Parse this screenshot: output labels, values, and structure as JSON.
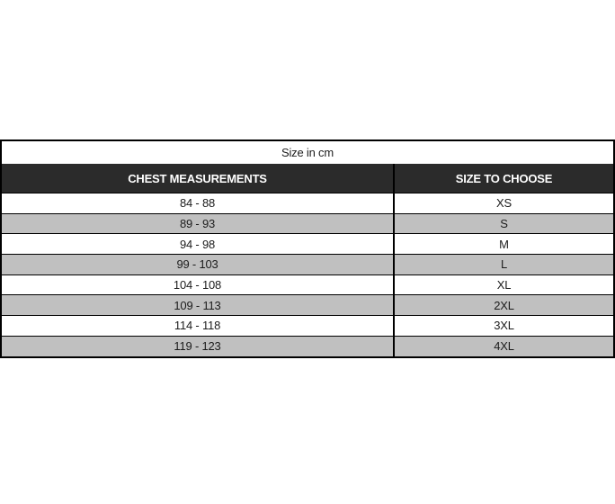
{
  "size_chart": {
    "caption": "Size in cm",
    "columns": [
      {
        "id": "chest",
        "label": "CHEST MEASUREMENTS"
      },
      {
        "id": "size",
        "label": "SIZE TO CHOOSE"
      }
    ],
    "rows": [
      {
        "chest": "84 - 88",
        "size": "XS"
      },
      {
        "chest": "89 - 93",
        "size": "S"
      },
      {
        "chest": "94 - 98",
        "size": "M"
      },
      {
        "chest": "99 - 103",
        "size": "L"
      },
      {
        "chest": "104 - 108",
        "size": "XL"
      },
      {
        "chest": "109 - 113",
        "size": "2XL"
      },
      {
        "chest": "114 - 118",
        "size": "3XL"
      },
      {
        "chest": "119 - 123",
        "size": "4XL"
      }
    ],
    "colors": {
      "header_bg": "#2b2b2b",
      "header_text": "#ffffff",
      "row_bg": "#ffffff",
      "row_alt_bg": "#c0c0c0",
      "border": "#000000",
      "text": "#1c1c1c"
    }
  }
}
